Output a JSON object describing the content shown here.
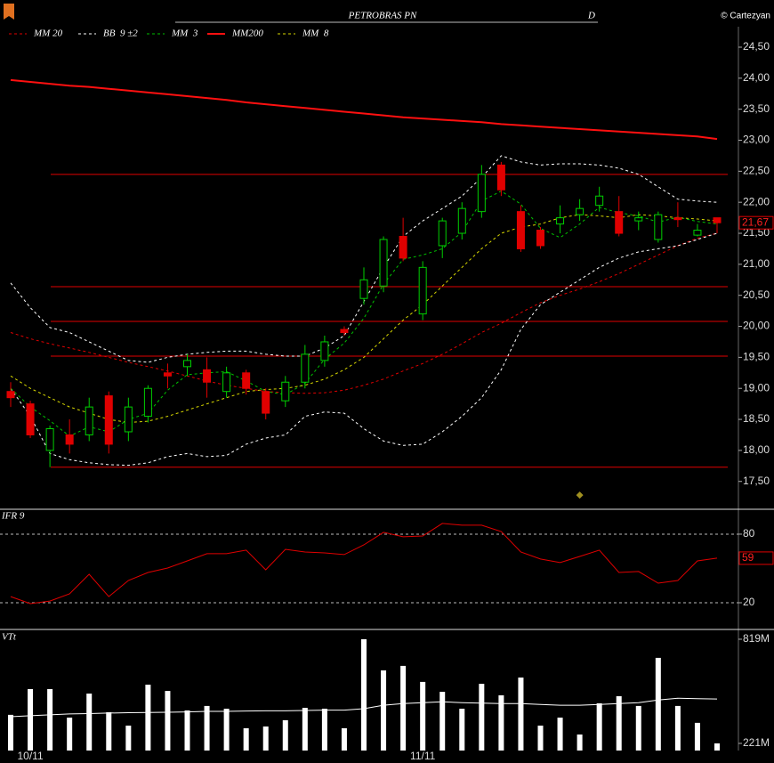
{
  "credit": "© Cartezyan",
  "chart_data": [
    {
      "type": "candlestick",
      "title": "PETROBRAS PN",
      "subtitle": "D",
      "open": [
        18.95,
        18.75,
        18.0,
        18.25,
        18.25,
        18.88,
        18.3,
        18.55,
        19.25,
        19.35,
        19.3,
        18.95,
        19.25,
        18.95,
        18.8,
        19.1,
        19.45,
        19.95,
        20.45,
        20.65,
        21.45,
        20.2,
        21.3,
        21.5,
        21.85,
        22.6,
        21.85,
        21.55,
        21.65,
        21.8,
        21.95,
        21.85,
        21.7,
        21.4,
        21.75,
        21.47,
        21.75
      ],
      "high": [
        19.1,
        18.8,
        18.4,
        18.5,
        18.85,
        18.95,
        18.85,
        19.05,
        19.4,
        19.55,
        19.5,
        19.35,
        19.3,
        19.0,
        19.2,
        19.7,
        19.85,
        20.0,
        20.95,
        21.45,
        21.75,
        21.05,
        21.75,
        22.0,
        22.6,
        22.65,
        21.95,
        21.6,
        21.95,
        22.05,
        22.25,
        22.1,
        21.85,
        21.85,
        22.0,
        21.65,
        21.75
      ],
      "low": [
        18.7,
        18.2,
        17.73,
        17.95,
        18.15,
        17.95,
        18.15,
        18.45,
        19.0,
        19.2,
        18.85,
        18.85,
        18.9,
        18.5,
        18.7,
        19.0,
        19.35,
        19.85,
        20.35,
        20.55,
        21.05,
        20.1,
        21.1,
        21.4,
        21.75,
        22.1,
        21.2,
        21.25,
        21.5,
        21.7,
        21.85,
        21.45,
        21.55,
        21.35,
        21.6,
        21.45,
        21.5
      ],
      "close": [
        18.85,
        18.25,
        18.35,
        18.1,
        18.7,
        18.1,
        18.7,
        19.0,
        19.2,
        19.45,
        19.1,
        19.25,
        19.0,
        18.6,
        19.1,
        19.55,
        19.75,
        19.9,
        20.75,
        21.4,
        21.1,
        20.95,
        21.7,
        21.9,
        22.45,
        22.2,
        21.25,
        21.3,
        21.75,
        21.9,
        22.1,
        21.5,
        21.75,
        21.8,
        21.72,
        21.55,
        21.67
      ],
      "up_color": "#00d000",
      "down_color": "#e00000",
      "last_price": {
        "value": 21.67,
        "label": "21,67"
      },
      "series": [
        {
          "name": "MM 20",
          "color": "#e00000",
          "dash": true,
          "values": [
            19.9,
            19.8,
            19.72,
            19.65,
            19.58,
            19.5,
            19.42,
            19.35,
            19.28,
            19.2,
            19.12,
            19.05,
            19.0,
            18.95,
            18.93,
            18.92,
            18.93,
            18.97,
            19.05,
            19.15,
            19.28,
            19.4,
            19.55,
            19.72,
            19.9,
            20.05,
            20.22,
            20.38,
            20.5,
            20.6,
            20.72,
            20.85,
            21.0,
            21.15,
            21.3,
            21.42,
            21.5
          ]
        },
        {
          "name": "BB  9 ±2",
          "color": "#ffffff",
          "dash": true,
          "upper": [
            20.7,
            20.3,
            19.98,
            19.9,
            19.75,
            19.6,
            19.45,
            19.42,
            19.5,
            19.55,
            19.58,
            19.6,
            19.6,
            19.55,
            19.52,
            19.52,
            19.65,
            19.85,
            20.4,
            20.95,
            21.45,
            21.7,
            21.9,
            22.1,
            22.4,
            22.75,
            22.65,
            22.6,
            22.62,
            22.62,
            22.6,
            22.55,
            22.45,
            22.25,
            22.05,
            22.02,
            22.0
          ],
          "lower": [
            19.0,
            18.55,
            17.95,
            17.85,
            17.8,
            17.77,
            17.76,
            17.8,
            17.9,
            17.95,
            17.9,
            17.92,
            18.1,
            18.2,
            18.25,
            18.55,
            18.62,
            18.6,
            18.35,
            18.15,
            18.08,
            18.1,
            18.3,
            18.55,
            18.85,
            19.3,
            19.95,
            20.35,
            20.55,
            20.75,
            20.95,
            21.1,
            21.2,
            21.25,
            21.3,
            21.4,
            21.5
          ]
        },
        {
          "name": "MM  3",
          "color": "#00c000",
          "dash": true,
          "values": [
            19.0,
            18.7,
            18.48,
            18.23,
            18.38,
            18.3,
            18.5,
            18.6,
            18.97,
            19.22,
            19.25,
            19.27,
            19.12,
            18.95,
            18.9,
            19.08,
            19.47,
            19.73,
            20.13,
            20.68,
            21.08,
            21.15,
            21.25,
            21.52,
            22.02,
            22.18,
            21.97,
            21.58,
            21.43,
            21.65,
            21.92,
            21.83,
            21.78,
            21.68,
            21.76,
            21.69,
            21.65
          ]
        },
        {
          "name": "MM200",
          "color": "#ff1010",
          "dash": false,
          "values": [
            23.97,
            23.94,
            23.91,
            23.88,
            23.86,
            23.83,
            23.8,
            23.77,
            23.74,
            23.71,
            23.68,
            23.65,
            23.61,
            23.58,
            23.55,
            23.52,
            23.49,
            23.46,
            23.43,
            23.4,
            23.37,
            23.35,
            23.33,
            23.31,
            23.29,
            23.26,
            23.24,
            23.22,
            23.2,
            23.18,
            23.16,
            23.14,
            23.12,
            23.1,
            23.08,
            23.06,
            23.02
          ]
        },
        {
          "name": "MM  8",
          "color": "#d8d800",
          "dash": true,
          "values": [
            19.2,
            19.0,
            18.85,
            18.7,
            18.6,
            18.5,
            18.45,
            18.47,
            18.55,
            18.65,
            18.75,
            18.85,
            18.95,
            18.98,
            19.0,
            19.05,
            19.15,
            19.3,
            19.5,
            19.8,
            20.1,
            20.35,
            20.65,
            20.95,
            21.25,
            21.5,
            21.6,
            21.65,
            21.75,
            21.8,
            21.78,
            21.75,
            21.8,
            21.78,
            21.75,
            21.73,
            21.7
          ]
        }
      ],
      "levels": [
        22.45,
        20.64,
        20.08,
        19.52,
        17.73
      ],
      "level_color": "#e00000",
      "marker": {
        "index": 29,
        "value": 17.28,
        "color": "#a09020"
      },
      "ylim": [
        17.08,
        24.83
      ],
      "yticks": [
        {
          "value": 17.5,
          "label": "17,50"
        },
        {
          "value": 18,
          "label": "18,00"
        },
        {
          "value": 18.5,
          "label": "18,50"
        },
        {
          "value": 19,
          "label": "19,00"
        },
        {
          "value": 19.5,
          "label": "19,50"
        },
        {
          "value": 20,
          "label": "20,00"
        },
        {
          "value": 20.5,
          "label": "20,50"
        },
        {
          "value": 21,
          "label": "21,00"
        },
        {
          "value": 21.5,
          "label": "21,50"
        },
        {
          "value": 22,
          "label": "22,00"
        },
        {
          "value": 22.5,
          "label": "22,50"
        },
        {
          "value": 23,
          "label": "23,00"
        },
        {
          "value": 23.5,
          "label": "23,50"
        },
        {
          "value": 24,
          "label": "24,00"
        },
        {
          "value": 24.5,
          "label": "24,50"
        }
      ]
    },
    {
      "type": "line",
      "title": "IFR 9",
      "series": [
        {
          "name": "IFR 9",
          "color": "#e00000",
          "values": [
            25.4,
            19.2,
            21.5,
            27.8,
            44.9,
            25.4,
            39.5,
            46.5,
            50.4,
            56.6,
            62.9,
            62.9,
            66,
            48.8,
            66.7,
            64.4,
            63.6,
            62.1,
            70.6,
            81.6,
            77.7,
            78.4,
            89.4,
            87.8,
            87.8,
            82.3,
            64.4,
            58.2,
            55.1,
            60.5,
            66,
            46.5,
            47.3,
            37.1,
            39.5,
            56.6,
            59
          ]
        }
      ],
      "ylim": [
        -2.6,
        101
      ],
      "yticks": [
        20,
        80
      ],
      "grid": true
    },
    {
      "type": "bar",
      "title": "VTt",
      "categories": [
        null,
        "10/11",
        null,
        null,
        null,
        null,
        null,
        null,
        null,
        null,
        null,
        null,
        null,
        null,
        null,
        null,
        null,
        null,
        null,
        null,
        null,
        "11/11",
        null,
        null,
        null,
        null,
        null,
        null,
        null,
        null,
        null,
        null,
        null,
        null,
        null,
        null,
        null
      ],
      "values": [
        385,
        533,
        533,
        369,
        507,
        400,
        323,
        558,
        522,
        410,
        436,
        420,
        308,
        318,
        354,
        425,
        420,
        308,
        819,
        640,
        666,
        574,
        517,
        420,
        563,
        497,
        599,
        323,
        369,
        272,
        451,
        492,
        436,
        712,
        436,
        339,
        221
      ],
      "color": "#ffffff",
      "average": [
        374,
        380,
        385,
        390,
        392,
        395,
        397,
        398,
        400,
        402,
        405,
        405,
        407,
        408,
        408,
        410,
        412,
        412,
        420,
        440,
        450,
        455,
        460,
        455,
        452,
        450,
        450,
        445,
        440,
        440,
        445,
        450,
        455,
        470,
        480,
        478,
        476
      ],
      "ylim": [
        180,
        870
      ],
      "yticks": [
        {
          "value": 221,
          "label": "221M"
        },
        {
          "value": 819,
          "label": "819M"
        }
      ]
    }
  ]
}
